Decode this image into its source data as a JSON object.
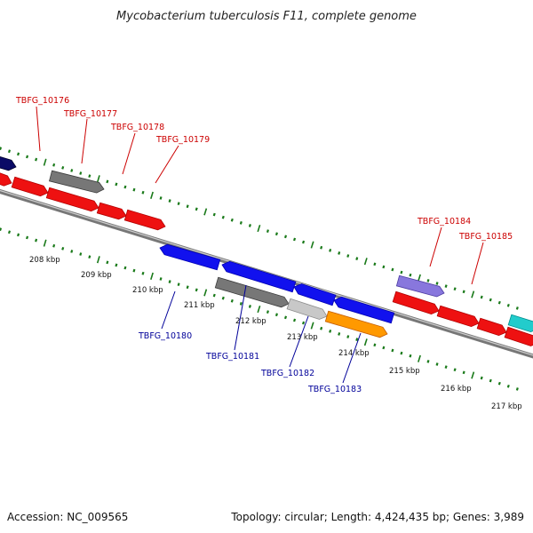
{
  "title": "Mycobacterium tuberculosis F11, complete genome",
  "footer": {
    "accession": "Accession: NC_009565",
    "info": "Topology: circular; Length: 4,424,435 bp; Genes: 3,989"
  },
  "colors": {
    "red": "#ee1111",
    "blue": "#1111ee",
    "gray": "#777777",
    "light_gray": "#c8c8c8",
    "dark_navy": "#0a0a66",
    "orange": "#ff9900",
    "purple": "#8877dd",
    "cyan": "#22cccc",
    "tick_green": "#1a7a1a",
    "backbone": "#888888",
    "label_top": "#cc0000",
    "label_bottom": "#000099"
  },
  "kbp_labels": [
    "208 kbp",
    "209 kbp",
    "210 kbp",
    "211 kbp",
    "212 kbp",
    "213 kbp",
    "214 kbp",
    "215 kbp",
    "216 kbp",
    "217 kbp"
  ],
  "top_gene_labels": [
    "TBFG_10176",
    "TBFG_10177",
    "TBFG_10178",
    "TBFG_10179",
    "TBFG_10184",
    "TBFG_10185"
  ],
  "bottom_gene_labels": [
    "TBFG_10180",
    "TBFG_10181",
    "TBFG_10182",
    "TBFG_10183"
  ]
}
